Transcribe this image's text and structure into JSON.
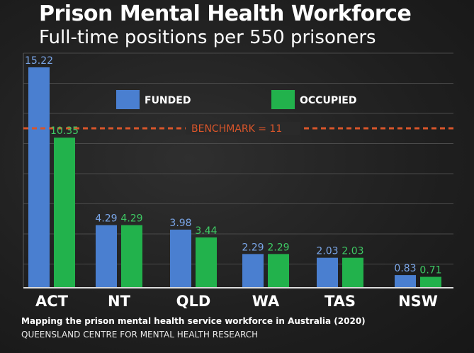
{
  "header": {
    "title": "Prison Mental Health Workforce",
    "subtitle": "Full-time positions per 550 prisoners"
  },
  "source": {
    "title": "Mapping the prison mental health service workforce in Australia (2020)",
    "org": "QUEENSLAND CENTRE FOR MENTAL HEALTH RESEARCH"
  },
  "chart_data": {
    "type": "bar",
    "title": "Prison Mental Health Workforce",
    "subtitle": "Full-time positions per 550 prisoners",
    "categories": [
      "ACT",
      "NT",
      "QLD",
      "WA",
      "TAS",
      "NSW"
    ],
    "series": [
      {
        "name": "FUNDED",
        "values": [
          15.22,
          4.29,
          3.98,
          2.29,
          2.03,
          0.83
        ],
        "color": "#4a7fd0",
        "label_color": "#7aa6e8"
      },
      {
        "name": "OCCUPIED",
        "values": [
          10.35,
          4.29,
          3.44,
          2.29,
          2.03,
          0.71
        ],
        "color": "#22b24c",
        "label_color": "#3ec964"
      }
    ],
    "benchmark": {
      "label": "BENCHMARK = 11",
      "value": 11,
      "color": "#d8552a"
    },
    "ylim": [
      0,
      15.22
    ],
    "grid": true,
    "legend": "top-center",
    "xlabel": "",
    "ylabel": ""
  }
}
